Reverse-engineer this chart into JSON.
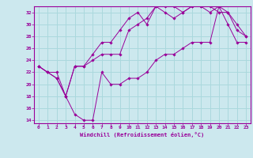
{
  "xlabel": "Windchill (Refroidissement éolien,°C)",
  "bg_color": "#cce8ee",
  "line_color": "#990099",
  "grid_color": "#aad8dd",
  "xlim": [
    -0.5,
    23.5
  ],
  "ylim": [
    13.5,
    33.0
  ],
  "yticks": [
    14,
    16,
    18,
    20,
    22,
    24,
    26,
    28,
    30,
    32
  ],
  "xticks": [
    0,
    1,
    2,
    3,
    4,
    5,
    6,
    7,
    8,
    9,
    10,
    11,
    12,
    13,
    14,
    15,
    16,
    17,
    18,
    19,
    20,
    21,
    22,
    23
  ],
  "series": [
    [
      23,
      22,
      22,
      18,
      15,
      14,
      14,
      22,
      20,
      20,
      21,
      21,
      22,
      24,
      25,
      25,
      26,
      27,
      27,
      27,
      33,
      30,
      27,
      27
    ],
    [
      23,
      22,
      21,
      18,
      23,
      23,
      25,
      27,
      27,
      29,
      31,
      32,
      30,
      33,
      32,
      31,
      32,
      33,
      33,
      32,
      33,
      32,
      29,
      28
    ],
    [
      23,
      22,
      21,
      18,
      23,
      23,
      24,
      25,
      25,
      25,
      29,
      30,
      31,
      33,
      33,
      33,
      32,
      33,
      33,
      33,
      32,
      32,
      30,
      28
    ]
  ]
}
